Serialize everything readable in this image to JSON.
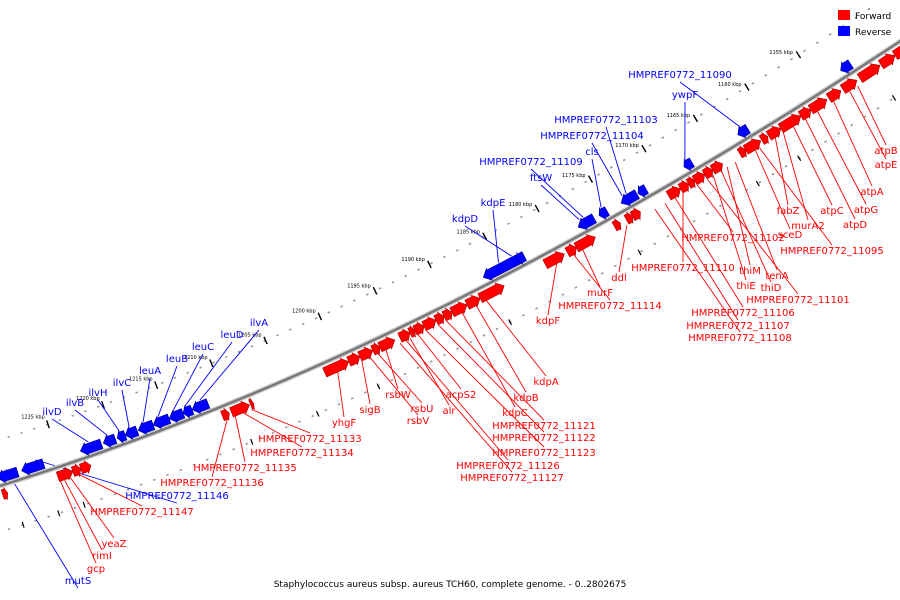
{
  "legend": [
    {
      "label": "Forward",
      "color": "#ff0000"
    },
    {
      "label": "Reverse",
      "color": "#0000ff"
    }
  ],
  "caption": "Staphylococcus aureus subsp. aureus TCH60, complete genome. - 0..2802675",
  "colors": {
    "forward": "#ff0000",
    "reverse": "#0000ff",
    "backbone": "#888888"
  },
  "scale_ticks": [
    "1155 kbp",
    "1160 kbp",
    "1165 kbp",
    "1170 kbp",
    "1175 kbp",
    "1180 kbp",
    "1185 kbp",
    "1190 kbp",
    "1195 kbp",
    "1200 kbp",
    "1205 kbp",
    "1210 kbp",
    "1215 kbp",
    "1220 kbp",
    "1225 kbp"
  ],
  "reverse_genes": [
    "HMPREF0772_11090",
    "ywpF",
    "HMPREF0772_11103",
    "HMPREF0772_11104",
    "cls",
    "HMPREF0772_11109",
    "ftsW",
    "kdpE",
    "kdpD",
    "ilvA",
    "leuD",
    "leuC",
    "leuB",
    "leuA",
    "ilvC",
    "ilvH",
    "ilvB",
    "ilvD",
    "HMPREF0772_11146",
    "mutS"
  ],
  "forward_genes": [
    "atpB",
    "atpE",
    "atpA",
    "atpG",
    "atpD",
    "atpC",
    "fabZ",
    "murA2",
    "HMPREF0772_11095",
    "sceD",
    "tenA",
    "thiM",
    "thiD",
    "thiE",
    "HMPREF0772_11101",
    "HMPREF0772_11102",
    "HMPREF0772_11110",
    "HMPREF0772_11106",
    "HMPREF0772_11107",
    "HMPREF0772_11108",
    "ddl",
    "murF",
    "HMPREF0772_11114",
    "kdpF",
    "kdpA",
    "kdpB",
    "kdpC",
    "HMPREF0772_11121",
    "HMPREF0772_11122",
    "HMPREF0772_11123",
    "acpS2",
    "alr",
    "HMPREF0772_11126",
    "HMPREF0772_11127",
    "rsbW",
    "rsbU",
    "rsbV",
    "sigB",
    "yhgF",
    "HMPREF0772_11133",
    "HMPREF0772_11134",
    "HMPREF0772_11135",
    "HMPREF0772_11136",
    "HMPREF0772_11147",
    "yeaZ",
    "rimI",
    "gcp"
  ]
}
